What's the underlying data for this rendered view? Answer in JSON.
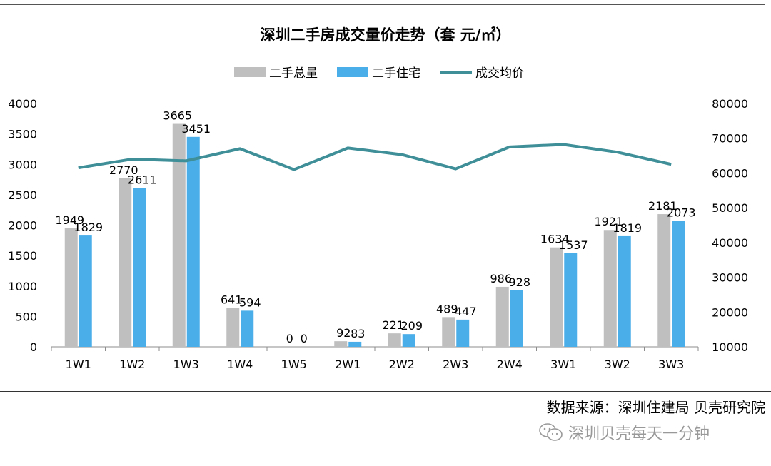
{
  "chart_data": {
    "type": "bar",
    "title": "深圳二手房成交量价走势（套 元/㎡）",
    "categories": [
      "1W1",
      "1W2",
      "1W3",
      "1W4",
      "1W5",
      "2W1",
      "2W2",
      "2W3",
      "2W4",
      "3W1",
      "3W2",
      "3W3"
    ],
    "series": [
      {
        "name": "二手总量",
        "type": "bar",
        "axis": "left",
        "color": "#bfbfbf",
        "values": [
          1949,
          2770,
          3665,
          641,
          0,
          92,
          221,
          489,
          986,
          1634,
          1921,
          2181
        ]
      },
      {
        "name": "二手住宅",
        "type": "bar",
        "axis": "left",
        "color": "#4aaee8",
        "values": [
          1829,
          2611,
          3451,
          594,
          0,
          83,
          209,
          447,
          928,
          1537,
          1819,
          2073
        ]
      },
      {
        "name": "成交均价",
        "type": "line",
        "axis": "right",
        "color": "#3f8f99",
        "values": [
          61500,
          64000,
          63500,
          67000,
          61000,
          67200,
          65300,
          61200,
          67500,
          68200,
          66000,
          62500
        ]
      }
    ],
    "y_left": {
      "min": 0,
      "max": 4000,
      "ticks": [
        0,
        500,
        1000,
        1500,
        2000,
        2500,
        3000,
        3500,
        4000
      ]
    },
    "y_right": {
      "min": 10000,
      "max": 80000,
      "ticks": [
        10000,
        20000,
        30000,
        40000,
        50000,
        60000,
        70000,
        80000
      ]
    },
    "legend_position": "top-center",
    "grid": false
  },
  "footer": {
    "source": "数据来源：深圳住建局 贝壳研究院",
    "watermark": "深圳贝壳每天一分钟",
    "watermark_icon": "wechat-icon"
  }
}
